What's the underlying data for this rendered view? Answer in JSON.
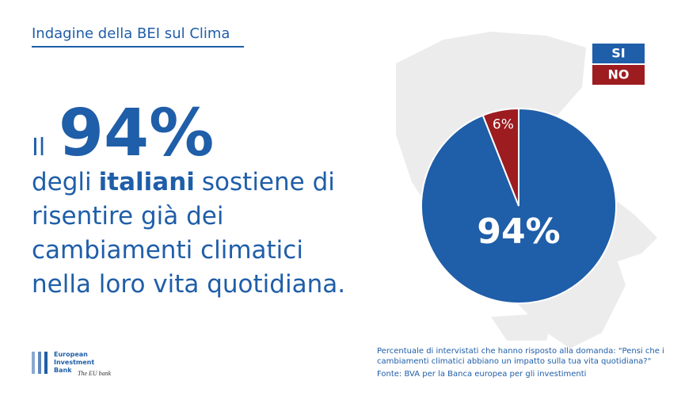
{
  "header": "Indagine della BEI sul Clima",
  "headline": {
    "prefix": "Il",
    "figure": "94%",
    "line1": [
      "degli",
      "italiani",
      "sostiene di"
    ],
    "lines": [
      "risentire già dei",
      "cambiamenti climatici",
      "nella loro vita quotidiana."
    ]
  },
  "chart_data": {
    "type": "pie",
    "categories": [
      "SI",
      "NO"
    ],
    "values": [
      94,
      6
    ],
    "value_labels": [
      "94%",
      "6%"
    ],
    "colors": [
      "#1f5ea8",
      "#9c1c20"
    ],
    "legend": "top-right"
  },
  "note": [
    "Percentuale di intervistati che hanno risposto alla domanda: \"Pensi che i",
    "cambiamenti climatici abbiano un impatto sulla tua vita quotidiana?\"",
    "Fonte: BVA per la Banca europea per gli investimenti"
  ],
  "logo": [
    "European",
    "Investment",
    "Bank",
    "The EU bank"
  ]
}
